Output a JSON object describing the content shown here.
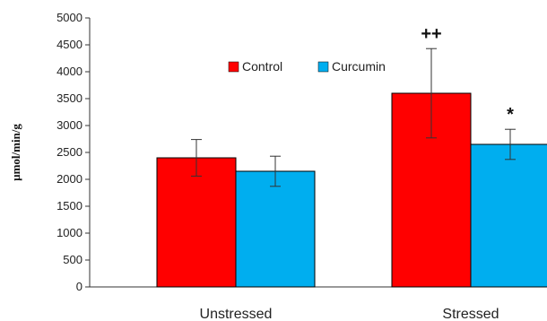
{
  "chart_data": {
    "type": "bar",
    "title": "",
    "xlabel": "",
    "ylabel": "µmol/min/g",
    "ylim": [
      0,
      5000
    ],
    "yticks": [
      0,
      500,
      1000,
      1500,
      2000,
      2500,
      3000,
      3500,
      4000,
      4500,
      5000
    ],
    "categories": [
      "Unstressed",
      "Stressed"
    ],
    "series": [
      {
        "name": "Control",
        "color": "#ff0000",
        "values": [
          2400,
          3600
        ],
        "errors": [
          340,
          830
        ]
      },
      {
        "name": "Curcumin",
        "color": "#00aeef",
        "values": [
          2150,
          2650
        ],
        "errors": [
          280,
          280
        ]
      }
    ],
    "annotations": [
      {
        "category": "Stressed",
        "series": "Control",
        "text": "++"
      },
      {
        "category": "Stressed",
        "series": "Curcumin",
        "text": "*"
      }
    ],
    "legend": {
      "position": "top-center"
    },
    "grid": false
  }
}
